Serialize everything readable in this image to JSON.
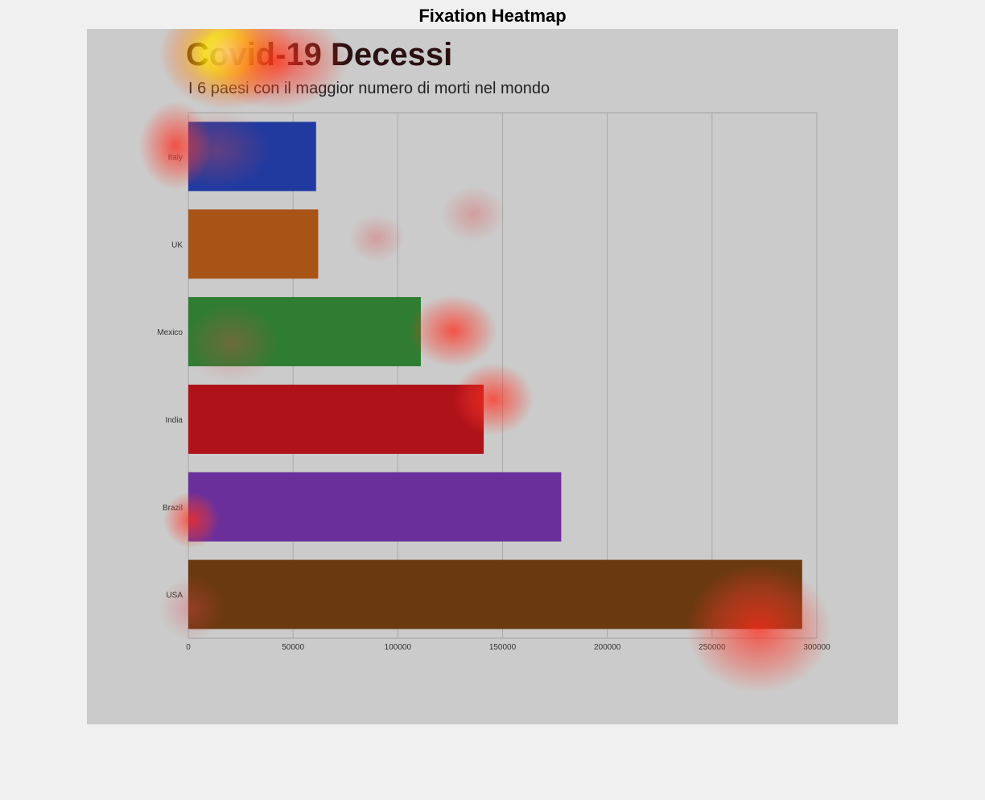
{
  "page": {
    "title": "Fixation Heatmap"
  },
  "chart_data": {
    "type": "bar",
    "orientation": "horizontal",
    "title": "Covid-19 Decessi",
    "subtitle": "I 6 paesi con il maggior numero di morti nel mondo",
    "xlabel": "",
    "ylabel": "",
    "categories": [
      "Italy",
      "UK",
      "Mexico",
      "India",
      "Brazil",
      "USA"
    ],
    "values": [
      61000,
      62000,
      111000,
      141000,
      178000,
      293000
    ],
    "colors": [
      "#203aa0",
      "#a85417",
      "#2e7d32",
      "#b0121a",
      "#6a2f9a",
      "#6b3910"
    ],
    "xlim": [
      0,
      300000
    ],
    "xticks": [
      "0",
      "50000",
      "100000",
      "150000",
      "200000",
      "250000",
      "300000"
    ],
    "grid": true,
    "legend": "none"
  }
}
